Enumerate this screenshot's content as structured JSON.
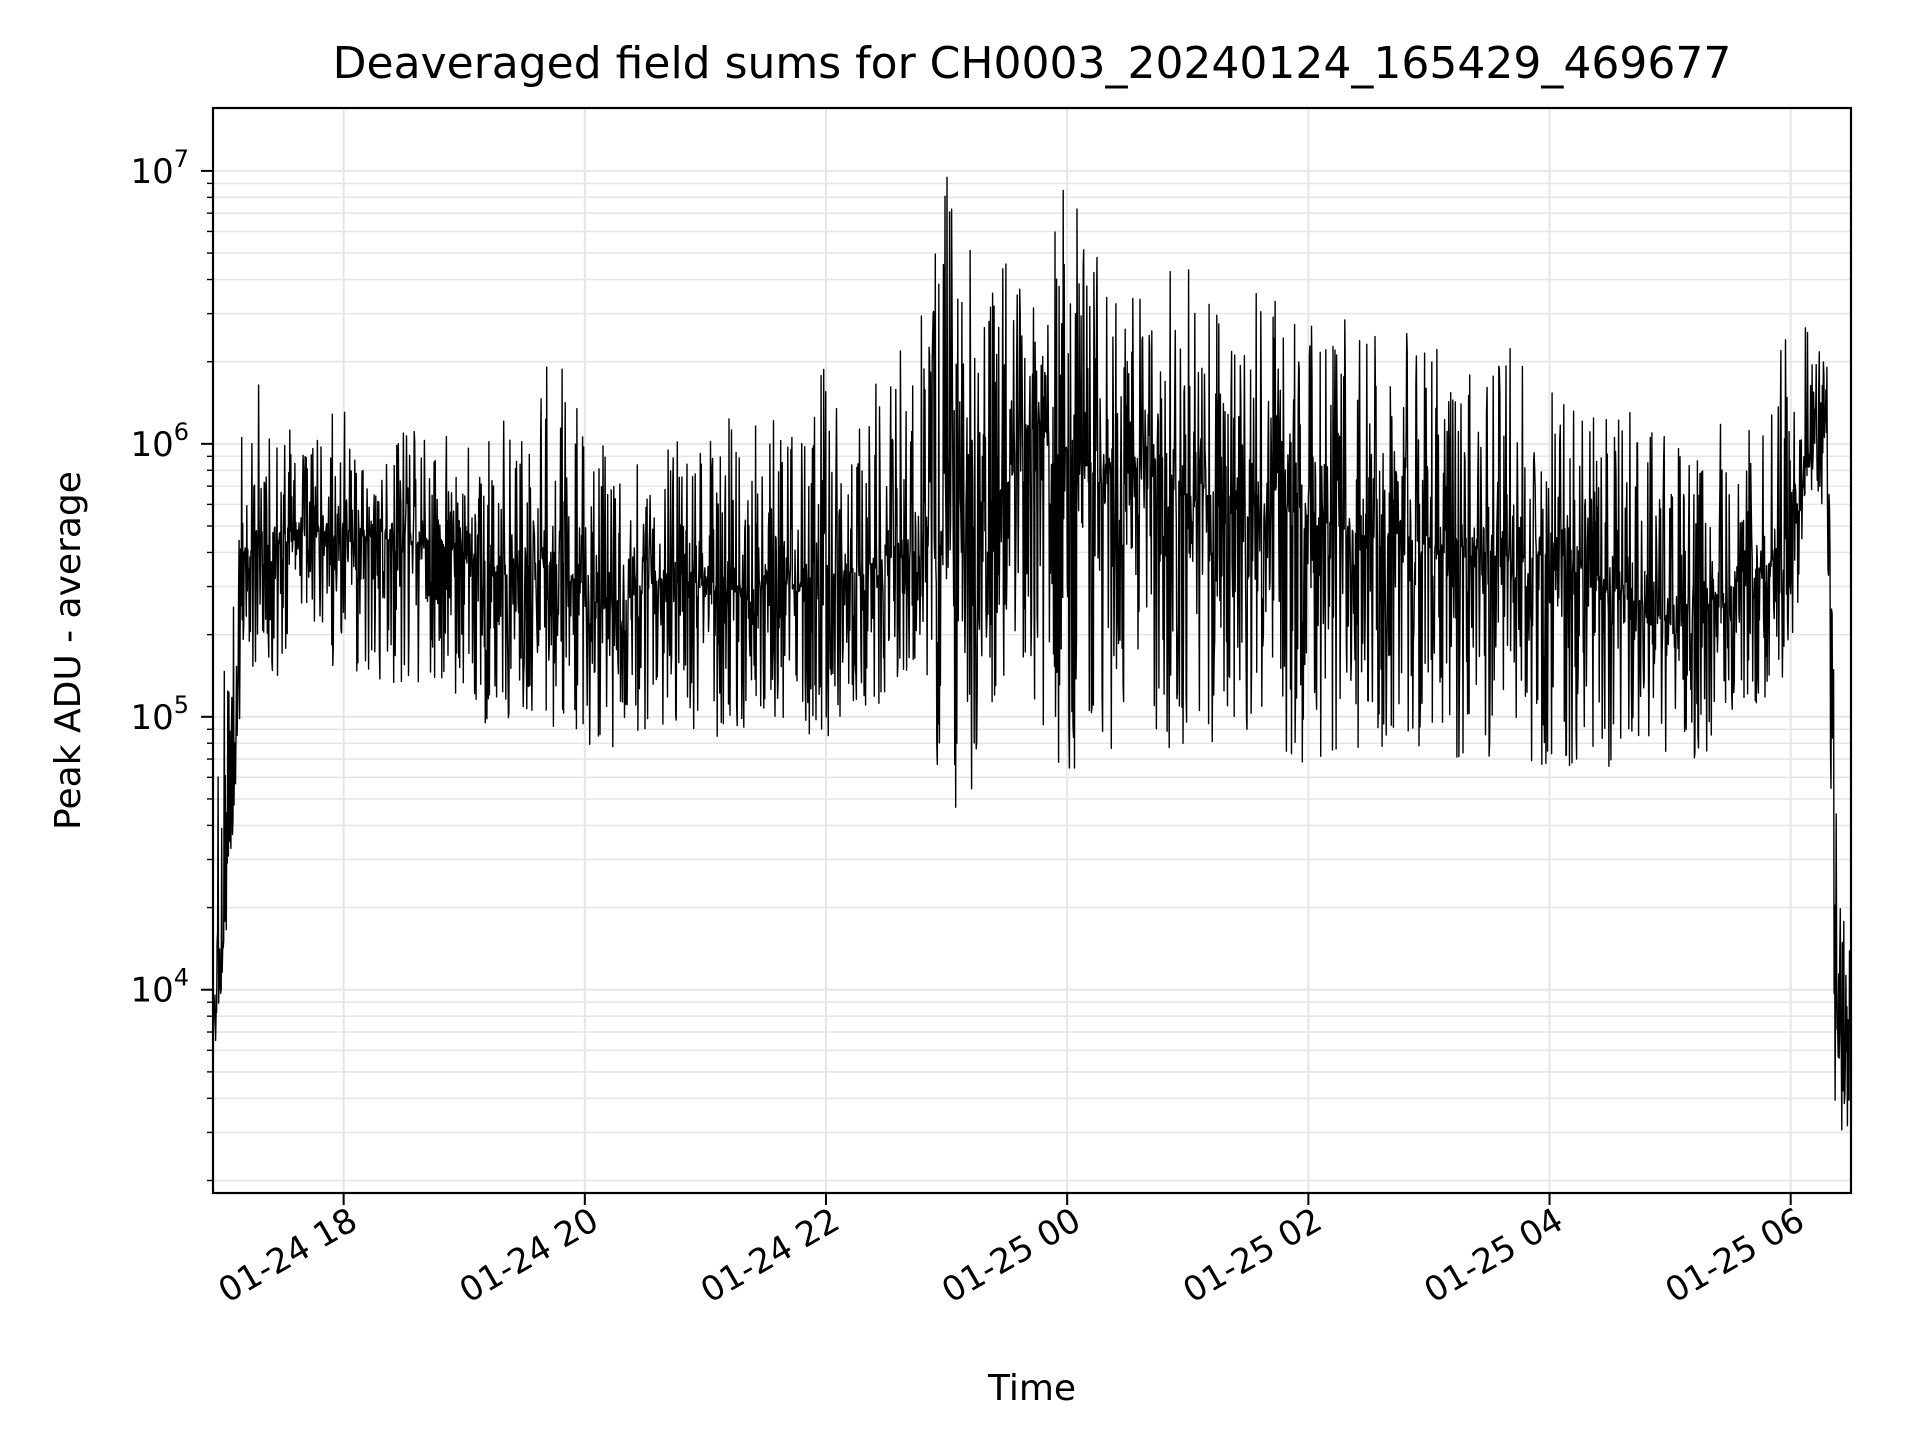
{
  "chart_data": {
    "type": "line",
    "title": "Deaveraged field sums for CH0003_20240124_165429_469677",
    "xlabel": "Time",
    "ylabel": "Peak ADU - average",
    "yscale": "log",
    "ylim": [
      1800,
      17000000
    ],
    "xlim": [
      "2024-01-24 16:55",
      "2024-01-25 06:30"
    ],
    "grid": true,
    "x_ticks": [
      {
        "value": "2024-01-24 18:00",
        "label": "01-24 18"
      },
      {
        "value": "2024-01-24 20:00",
        "label": "01-24 20"
      },
      {
        "value": "2024-01-24 22:00",
        "label": "01-24 22"
      },
      {
        "value": "2024-01-25 00:00",
        "label": "01-25 00"
      },
      {
        "value": "2024-01-25 02:00",
        "label": "01-25 02"
      },
      {
        "value": "2024-01-25 04:00",
        "label": "01-25 04"
      },
      {
        "value": "2024-01-25 06:00",
        "label": "01-25 06"
      }
    ],
    "y_ticks": [
      {
        "value": 10000,
        "base": "10",
        "exp": "4"
      },
      {
        "value": 100000,
        "base": "10",
        "exp": "5"
      },
      {
        "value": 1000000,
        "base": "10",
        "exp": "6"
      },
      {
        "value": 10000000,
        "base": "10",
        "exp": "7"
      }
    ],
    "line_color": "#000000",
    "grid_color": "#e6e6e6",
    "series": [
      {
        "x": [
          "2024-01-24 16:55",
          "2024-01-24 17:00",
          "2024-01-24 17:05",
          "2024-01-24 17:10",
          "2024-01-24 17:20",
          "2024-01-24 17:30",
          "2024-01-24 17:45",
          "2024-01-24 18:00",
          "2024-01-24 18:15",
          "2024-01-24 18:30",
          "2024-01-24 18:45",
          "2024-01-24 19:00",
          "2024-01-24 19:15",
          "2024-01-24 19:30",
          "2024-01-24 19:45",
          "2024-01-24 20:00",
          "2024-01-24 20:15",
          "2024-01-24 20:30",
          "2024-01-24 20:45",
          "2024-01-24 21:00",
          "2024-01-24 21:15",
          "2024-01-24 21:30",
          "2024-01-24 21:45",
          "2024-01-24 22:00",
          "2024-01-24 22:15",
          "2024-01-24 22:30",
          "2024-01-24 22:45",
          "2024-01-24 23:00",
          "2024-01-24 23:15",
          "2024-01-24 23:30",
          "2024-01-24 23:45",
          "2024-01-25 00:00",
          "2024-01-25 00:15",
          "2024-01-25 00:30",
          "2024-01-25 00:45",
          "2024-01-25 01:00",
          "2024-01-25 01:15",
          "2024-01-25 01:30",
          "2024-01-25 01:45",
          "2024-01-25 02:00",
          "2024-01-25 02:15",
          "2024-01-25 02:30",
          "2024-01-25 02:45",
          "2024-01-25 03:00",
          "2024-01-25 03:15",
          "2024-01-25 03:30",
          "2024-01-25 03:45",
          "2024-01-25 04:00",
          "2024-01-25 04:15",
          "2024-01-25 04:30",
          "2024-01-25 04:45",
          "2024-01-25 05:00",
          "2024-01-25 05:15",
          "2024-01-25 05:30",
          "2024-01-25 05:45",
          "2024-01-25 06:00",
          "2024-01-25 06:10",
          "2024-01-25 06:18",
          "2024-01-25 06:22",
          "2024-01-25 06:26",
          "2024-01-25 06:30"
        ],
        "y": [
          8000,
          15000,
          60000,
          400000,
          450000,
          420000,
          500000,
          430000,
          470000,
          420000,
          450000,
          380000,
          330000,
          350000,
          400000,
          280000,
          250000,
          300000,
          330000,
          300000,
          290000,
          320000,
          300000,
          330000,
          350000,
          380000,
          400000,
          500000,
          600000,
          700000,
          1200000,
          900000,
          800000,
          700000,
          900000,
          650000,
          600000,
          550000,
          650000,
          550000,
          500000,
          450000,
          480000,
          420000,
          380000,
          400000,
          380000,
          400000,
          380000,
          300000,
          250000,
          220000,
          230000,
          300000,
          350000,
          400000,
          1000000,
          1200000,
          30000,
          4000,
          10000
        ],
        "low": [
          5500,
          10000,
          40000,
          150000,
          130000,
          140000,
          160000,
          150000,
          140000,
          120000,
          130000,
          100000,
          90000,
          100000,
          90000,
          80000,
          75000,
          80000,
          90000,
          85000,
          80000,
          90000,
          85000,
          80000,
          95000,
          100000,
          150000,
          33000,
          60000,
          90000,
          100000,
          45000,
          60000,
          90000,
          70000,
          80000,
          80000,
          90000,
          75000,
          60000,
          70000,
          80000,
          75000,
          70000,
          70000,
          65000,
          70000,
          65000,
          60000,
          65000,
          70000,
          70000,
          65000,
          75000,
          100000,
          150000,
          600000,
          500000,
          3000,
          2600,
          3200
        ],
        "high": [
          30000,
          120000,
          700000,
          1500000,
          1900000,
          1300000,
          1300000,
          1400000,
          1200000,
          1300000,
          1200000,
          1000000,
          1400000,
          1000000,
          2600000,
          1300000,
          900000,
          1000000,
          1200000,
          1000000,
          1400000,
          1100000,
          1700000,
          2100000,
          1300000,
          2000000,
          3000000,
          10000000,
          5300000,
          4600000,
          4400000,
          10700000,
          5000000,
          3600000,
          3800000,
          5300000,
          3500000,
          4400000,
          3400000,
          2700000,
          2900000,
          2700000,
          3000000,
          2300000,
          2000000,
          1800000,
          2600000,
          1600000,
          1500000,
          1300000,
          1400000,
          1200000,
          1100000,
          1300000,
          1300000,
          3100000,
          2900000,
          2100000,
          100000,
          19000,
          15000
        ]
      }
    ]
  }
}
